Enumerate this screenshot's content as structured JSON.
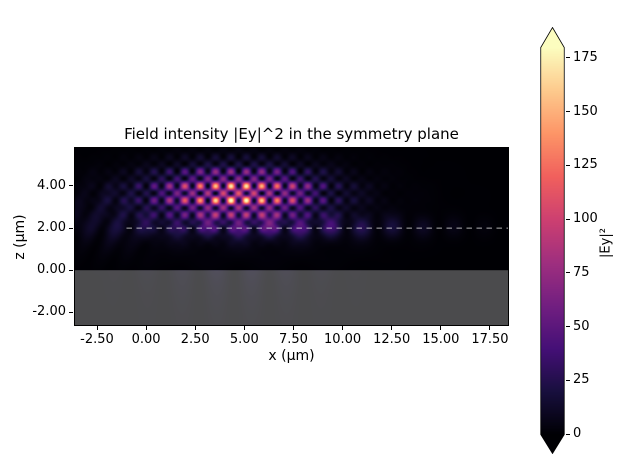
{
  "figure": {
    "title": "Field intensity |Ey|^2 in the symmetry plane",
    "xlabel": "x (μm)",
    "ylabel": "z (μm)",
    "colorbar_label": "|Ey|²",
    "background": "#ffffff"
  },
  "chart_data": {
    "type": "heatmap",
    "title": "Field intensity |Ey|^2 in the symmetry plane",
    "xlabel": "x (μm)",
    "ylabel": "z (μm)",
    "xlim": [
      -3.62,
      18.42
    ],
    "zlim": [
      -2.6,
      5.8
    ],
    "x_ticks": [
      {
        "value": -2.5,
        "label": "-2.50"
      },
      {
        "value": 0,
        "label": "0.00"
      },
      {
        "value": 2.5,
        "label": "2.50"
      },
      {
        "value": 5,
        "label": "5.00"
      },
      {
        "value": 7.5,
        "label": "7.50"
      },
      {
        "value": 10,
        "label": "10.00"
      },
      {
        "value": 12.5,
        "label": "12.50"
      },
      {
        "value": 15,
        "label": "15.00"
      },
      {
        "value": 17.5,
        "label": "17.50"
      }
    ],
    "z_ticks": [
      {
        "value": 4,
        "label": "4.00"
      },
      {
        "value": 2,
        "label": "2.00"
      },
      {
        "value": 0,
        "label": "0.00"
      },
      {
        "value": -2,
        "label": "-2.00"
      }
    ],
    "colormap": "magma",
    "colormap_stops": [
      "#000004",
      "#180f3e",
      "#451077",
      "#721f81",
      "#9f2f7f",
      "#cd4071",
      "#f1605d",
      "#fd9567",
      "#feca8d",
      "#fcfdbf"
    ],
    "vmin": 0,
    "vmax": 180,
    "colorbar": {
      "label": "|Ey|²",
      "ticks": [
        0,
        25,
        50,
        75,
        100,
        125,
        150,
        175
      ],
      "extend": "both"
    },
    "overlays": {
      "substrate": {
        "z_from": -2.6,
        "z_to": 0,
        "color": "rgba(150,150,150,0.5)"
      },
      "monitor_line": {
        "z": 2.0,
        "x_from": -1.0,
        "x_to": 18.42,
        "style": "dashed",
        "color": "rgba(225,225,225,0.8)"
      }
    },
    "field_model": {
      "lattice": {
        "amp": 185,
        "x0": 4.6,
        "sx": 3.8,
        "z0": 3.6,
        "sz": 1.15,
        "kx": 4.0,
        "kz": 4.45,
        "z_offset": 0.12,
        "alt": 0.55
      },
      "interface_wave": {
        "amp": 40,
        "z0": 2.05,
        "sz": 0.5,
        "x0": 6.5,
        "sx": 6.5,
        "k": 4.0
      },
      "halo": {
        "amp": 16,
        "z0": 3.0,
        "sz": 1.9,
        "x0": 5.0,
        "sx": 6.0,
        "kx": 2.0,
        "kz": 2.6
      },
      "left_fringes": {
        "amp": 12,
        "z0": 2.6,
        "sz": 1.5,
        "x0": -1.8,
        "sx": 2.2,
        "k": 5.0
      },
      "transmitted": {
        "amp": 10,
        "x0": 4.5,
        "sx": 4.5,
        "k": 3.5,
        "decay": 1.6
      }
    }
  }
}
